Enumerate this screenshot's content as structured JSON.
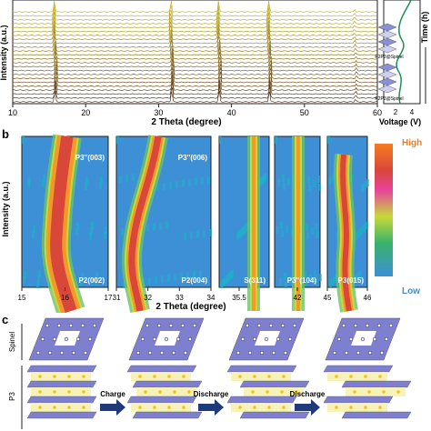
{
  "panel_a": {
    "y_label": "Intensity (a.u.)",
    "x_label": "2 Theta (degree)",
    "x_ticks": [
      "10",
      "20",
      "30",
      "40",
      "50",
      "60"
    ],
    "voltage_label": "Voltage (V)",
    "voltage_ticks": [
      "2",
      "4"
    ],
    "time_label": "Time (h)",
    "phase_labels": [
      "P2P3@Spinel",
      "P2P3@Spinel"
    ]
  },
  "panel_b": {
    "letter": "b",
    "y_label": "Intensity (a.u.)",
    "x_label": "2 Theta (degree)",
    "colorbar": {
      "high": "High",
      "low": "Low"
    },
    "windows": [
      {
        "top_label": "P3''(003)",
        "bottom_label": "P2(002)",
        "ticks": [
          "15",
          "16",
          "17"
        ]
      },
      {
        "top_label": "P3''(006)",
        "bottom_label": "P2(004)",
        "ticks": [
          "31",
          "32",
          "33",
          "34"
        ]
      },
      {
        "top_label": "",
        "bottom_label": "S(311)",
        "ticks": [
          "35.5"
        ]
      },
      {
        "top_label": "",
        "bottom_label": "P3''(104)",
        "ticks": [
          "42"
        ]
      },
      {
        "top_label": "",
        "bottom_label": "P3(015)",
        "ticks": [
          "45",
          "46"
        ]
      }
    ]
  },
  "panel_c": {
    "letter": "c",
    "layer_labels": [
      "Spinel",
      "P3"
    ],
    "arrows": [
      "Charge",
      "Discharge",
      "Discharge"
    ]
  },
  "colors": {
    "colormap": [
      "#3d8fd6",
      "#1fb1c9",
      "#6cc06a",
      "#c7d93a",
      "#e4d437",
      "#f19a2a",
      "#d9473a",
      "#e7439b"
    ],
    "arrow": "#1f3a7a",
    "octahedra": "#7e7fcf",
    "layer": "#f7f2b8"
  }
}
